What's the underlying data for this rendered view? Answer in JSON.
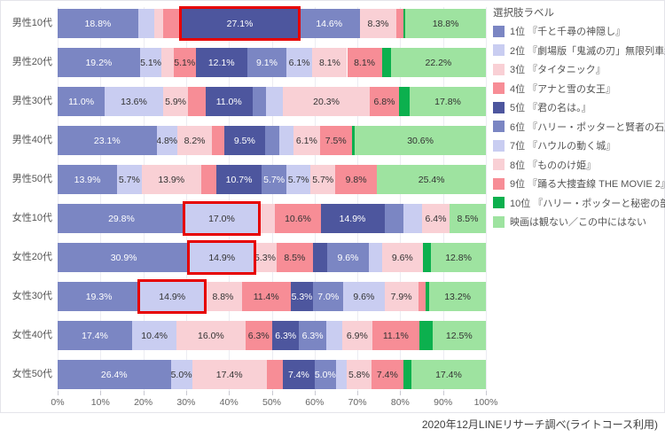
{
  "footer": "2020年12月LINEリサーチ調べ(ライトコース利用)",
  "legend": {
    "title": "選択肢ラベル"
  },
  "chart_data": {
    "type": "bar",
    "variant": "horizontal-stacked",
    "title": "",
    "xlabel": "",
    "ylabel": "",
    "xlim": [
      0,
      100
    ],
    "grid": true,
    "legend_position": "right",
    "x_ticks": [
      "0%",
      "10%",
      "20%",
      "30%",
      "40%",
      "50%",
      "60%",
      "70%",
      "80%",
      "90%",
      "100%"
    ],
    "categories": [
      "男性10代",
      "男性20代",
      "男性30代",
      "男性40代",
      "男性50代",
      "女性10代",
      "女性20代",
      "女性30代",
      "女性40代",
      "女性50代"
    ],
    "series": [
      {
        "name": "1位 『千と千尋の神隠し』",
        "color": "#7B86C3",
        "values": [
          18.8,
          19.2,
          11.0,
          23.1,
          13.9,
          29.8,
          30.9,
          19.3,
          17.4,
          26.4
        ]
      },
      {
        "name": "2位 『劇場版「鬼滅の刃」無限列車編』",
        "color": "#C9CDF1",
        "values": [
          3.8,
          5.1,
          13.6,
          4.8,
          5.7,
          17.0,
          14.9,
          14.9,
          10.4,
          5.0
        ]
      },
      {
        "name": "3位 『タイタニック』",
        "color": "#F9D0D5",
        "values": [
          2.1,
          2.8,
          5.9,
          8.2,
          13.9,
          4.0,
          5.3,
          8.8,
          16.0,
          17.4
        ]
      },
      {
        "name": "4位 『アナと雪の女王』",
        "color": "#F78D96",
        "values": [
          4.3,
          5.1,
          4.0,
          2.8,
          3.5,
          10.6,
          8.5,
          11.4,
          6.3,
          3.8
        ]
      },
      {
        "name": "5位 『君の名は。』",
        "color": "#4D569E",
        "values": [
          27.1,
          12.1,
          11.0,
          9.5,
          10.7,
          14.9,
          3.4,
          5.3,
          6.3,
          7.4
        ]
      },
      {
        "name": "6位 『ハリー・ポッターと賢者の石』",
        "color": "#7B86C3",
        "values": [
          14.6,
          9.1,
          3.2,
          3.3,
          5.7,
          4.4,
          9.6,
          7.0,
          6.3,
          5.0
        ]
      },
      {
        "name": "7位 『ハウルの動く城』",
        "color": "#C9CDF1",
        "values": [
          0,
          6.1,
          3.9,
          3.4,
          5.7,
          4.4,
          3.1,
          9.6,
          3.8,
          2.5
        ]
      },
      {
        "name": "8位 『もののけ姫』",
        "color": "#F9D0D5",
        "values": [
          8.3,
          8.1,
          20.3,
          6.1,
          5.7,
          6.4,
          9.6,
          7.9,
          6.9,
          5.8
        ]
      },
      {
        "name": "9位 『踊る大捜査線 THE MOVIE 2』",
        "color": "#F78D96",
        "values": [
          1.7,
          8.1,
          6.8,
          7.5,
          9.8,
          0,
          0,
          1.8,
          11.1,
          7.4
        ]
      },
      {
        "name": "10位 『ハリー・ポッターと秘密の部屋』",
        "color": "#0CB04E",
        "values": [
          0.5,
          2.1,
          2.5,
          0.7,
          0,
          0,
          1.9,
          0.8,
          3.0,
          1.9
        ]
      },
      {
        "name": "映画は観ない／この中にはない",
        "color": "#9EE3A0",
        "values": [
          18.8,
          22.2,
          17.8,
          30.6,
          25.4,
          8.5,
          12.8,
          13.2,
          12.5,
          17.4
        ]
      }
    ],
    "label_threshold": 4.8,
    "white_label_series": [
      0,
      4,
      5
    ],
    "annotation_color": "#E60000",
    "annotations": [
      {
        "row": 0,
        "series": 4,
        "value": 27.1
      },
      {
        "row": 5,
        "series": 1,
        "value": 17.0
      },
      {
        "row": 6,
        "series": 1,
        "value": 14.9
      },
      {
        "row": 7,
        "series": 1,
        "value": 14.9
      }
    ]
  }
}
